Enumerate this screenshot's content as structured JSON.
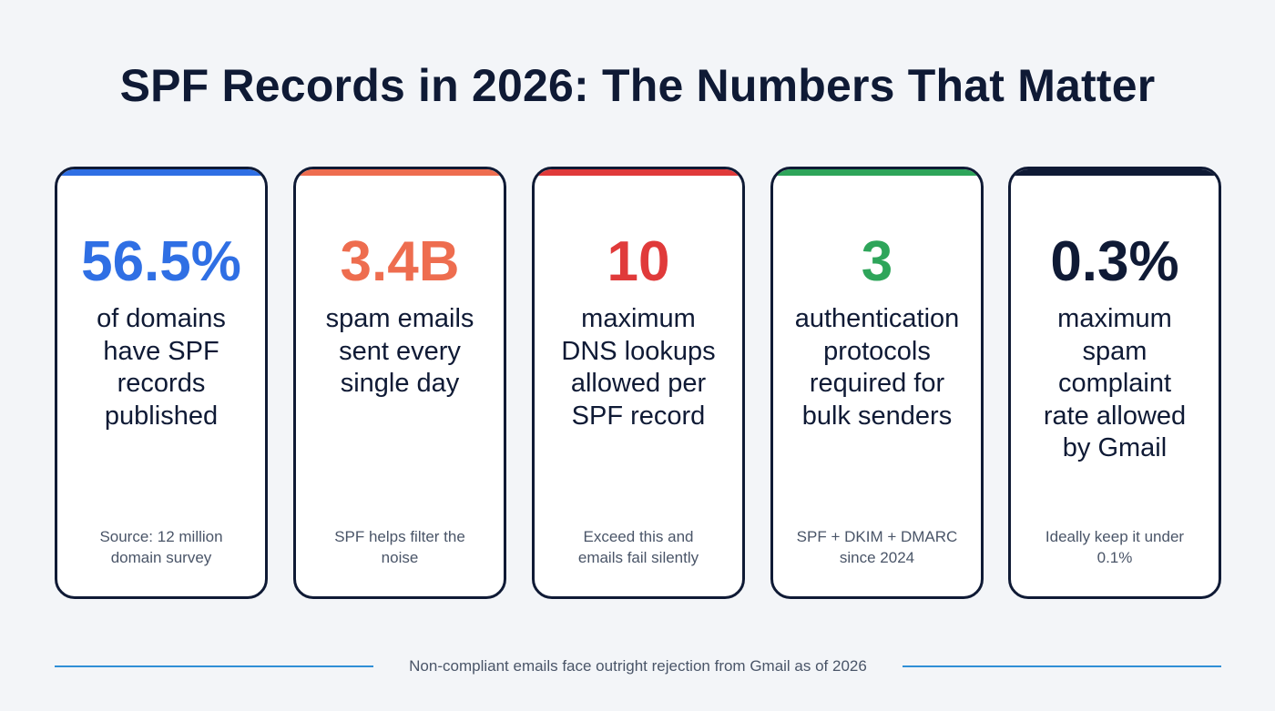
{
  "title": "SPF Records in 2026: The Numbers That Matter",
  "cards": [
    {
      "value": "56.5%",
      "description": "of domains\nhave SPF\nrecords\npublished",
      "note": "Source: 12 million\ndomain survey",
      "accent_color": "#2f6fe4",
      "value_color": "#2f6fe4"
    },
    {
      "value": "3.4B",
      "description": "spam emails\nsent every\nsingle day",
      "note": "SPF helps filter the\nnoise",
      "accent_color": "#ee6d4f",
      "value_color": "#ee6d4f"
    },
    {
      "value": "10",
      "description": "maximum\nDNS lookups\nallowed per\nSPF record",
      "note": "Exceed this and\nemails fail silently",
      "accent_color": "#e03a3a",
      "value_color": "#e03a3a"
    },
    {
      "value": "3",
      "description": "authentication\nprotocols\nrequired for\nbulk senders",
      "note": "SPF + DKIM + DMARC\nsince 2024",
      "accent_color": "#2ea55a",
      "value_color": "#2ea55a"
    },
    {
      "value": "0.3%",
      "description": "maximum\nspam\ncomplaint\nrate allowed\nby Gmail",
      "note": "Ideally keep it under\n0.1%",
      "accent_color": "#0f1a35",
      "value_color": "#0f1a35"
    }
  ],
  "footer": {
    "text": "Non-compliant emails face outright rejection from Gmail as of 2026"
  }
}
